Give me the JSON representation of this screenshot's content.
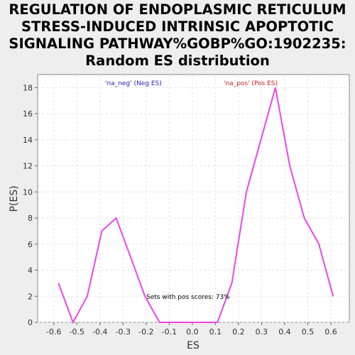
{
  "chart_data": {
    "type": "line",
    "title_lines": [
      "REGULATION OF ENDOPLASMIC RETICULUM",
      "STRESS-INDUCED INTRINSIC APOPTOTIC",
      "SIGNALING PATHWAY%GOBP%GO:1902235:",
      "Random ES distribution"
    ],
    "xlabel": "ES",
    "ylabel": "P(ES)",
    "xlim": [
      -0.67,
      0.68
    ],
    "ylim": [
      0,
      19
    ],
    "xticks": [
      -0.6,
      -0.5,
      -0.4,
      -0.3,
      -0.2,
      -0.1,
      0.0,
      0.1,
      0.2,
      0.3,
      0.4,
      0.5,
      0.6
    ],
    "xtick_labels": [
      "-0.6",
      "-0.5",
      "-0.4",
      "-0.3",
      "-0.2",
      "-0.1",
      "0.0",
      "0.1",
      "0.2",
      "0.3",
      "0.4",
      "0.5",
      "0.6"
    ],
    "yticks": [
      0,
      2,
      4,
      6,
      8,
      10,
      12,
      14,
      16,
      18
    ],
    "ytick_labels": [
      "0",
      "2",
      "4",
      "6",
      "8",
      "10",
      "12",
      "14",
      "16",
      "18"
    ],
    "grid": true,
    "series": [
      {
        "color": "#ee44ee",
        "x": [
          -0.58,
          -0.517,
          -0.455,
          -0.392,
          -0.33,
          -0.267,
          -0.205,
          -0.142,
          -0.08,
          -0.017,
          0.046,
          0.109,
          0.171,
          0.234,
          0.297,
          0.36,
          0.422,
          0.485,
          0.548,
          0.61
        ],
        "y": [
          3,
          0,
          2,
          7,
          8,
          5,
          2,
          0,
          0,
          0,
          0,
          0,
          3,
          10,
          14,
          18,
          12,
          8,
          6,
          2
        ]
      }
    ],
    "annotations": [
      {
        "text": "'na_neg' (Neg ES)",
        "color": "#2222bb"
      },
      {
        "text": "'na_pos' (Pos ES)",
        "color": "#cc2222"
      },
      {
        "text": "Sets with pos scores: 73%",
        "color": "#000000"
      }
    ]
  }
}
